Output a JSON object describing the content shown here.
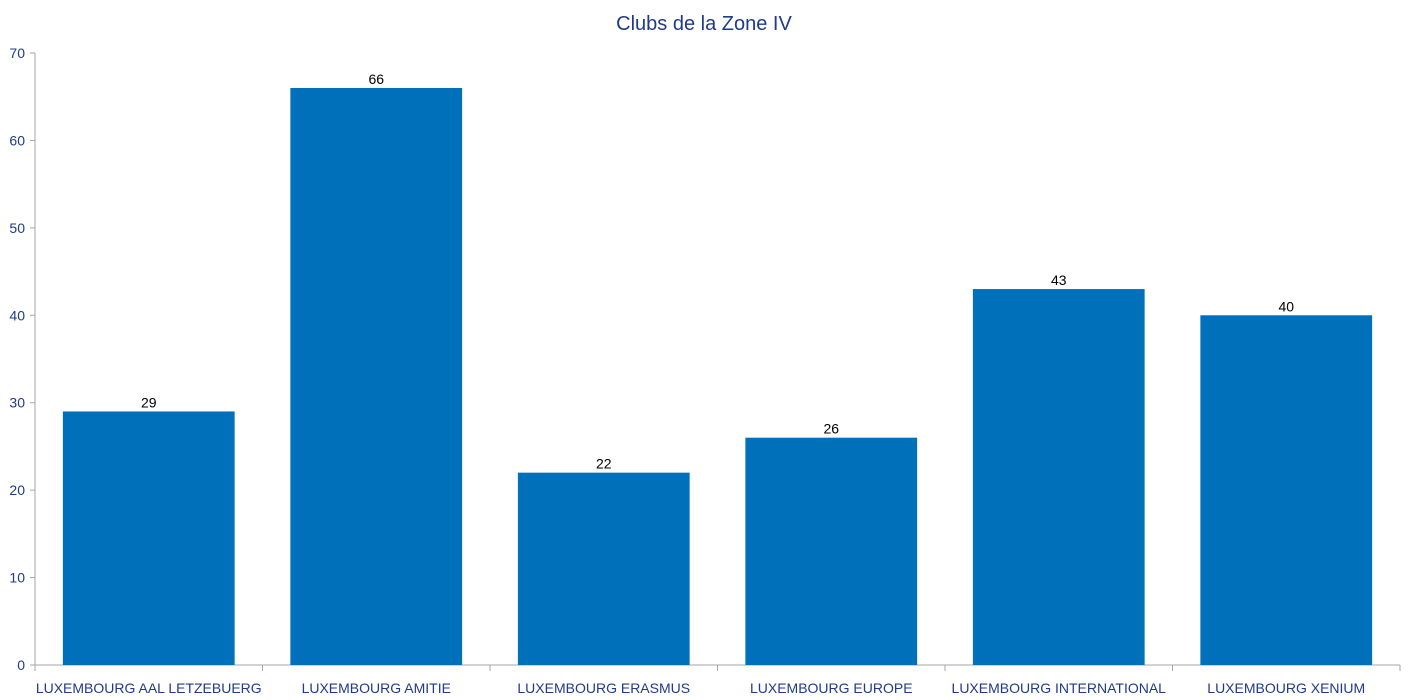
{
  "chart_data": {
    "type": "bar",
    "title": "Clubs de la Zone IV",
    "xlabel": "",
    "ylabel": "",
    "categories": [
      "LUXEMBOURG AAL LETZEBUERG",
      "LUXEMBOURG AMITIE",
      "LUXEMBOURG ERASMUS",
      "LUXEMBOURG EUROPE",
      "LUXEMBOURG INTERNATIONAL",
      "LUXEMBOURG XENIUM"
    ],
    "values": [
      29,
      66,
      22,
      26,
      43,
      40
    ],
    "data_labels": [
      "29",
      "66",
      "22",
      "26",
      "43",
      "40"
    ],
    "ylim": [
      0,
      70
    ],
    "yticks": [
      0,
      10,
      20,
      30,
      40,
      50,
      60,
      70
    ],
    "ytick_labels": [
      "0",
      "10",
      "20",
      "30",
      "40",
      "50",
      "60",
      "70"
    ],
    "grid": false,
    "legend": "none",
    "colors": {
      "bar": "#0070BA",
      "title": "#1F3A8A",
      "tick_label": "#1F3A8A",
      "axis": "#A6A6A6",
      "data_label": "#000000"
    }
  }
}
